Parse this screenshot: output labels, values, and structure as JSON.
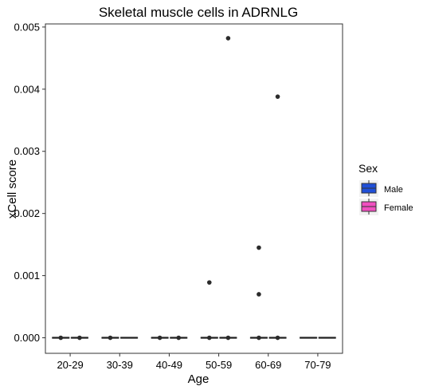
{
  "chart_data": {
    "type": "boxplot",
    "title": "Skeletal muscle cells in ADRNLG",
    "xlabel": "Age",
    "ylabel": "xCell score",
    "categories": [
      "20-29",
      "30-39",
      "40-49",
      "50-59",
      "60-69",
      "70-79"
    ],
    "ylim": [
      -0.00025,
      0.00505
    ],
    "yticks": [
      "0.000",
      "0.001",
      "0.002",
      "0.003",
      "0.004",
      "0.005"
    ],
    "grid": false,
    "legend": {
      "title": "Sex",
      "placement": "right",
      "entries": [
        {
          "name": "Male",
          "color": "#1f4fd8"
        },
        {
          "name": "Female",
          "color": "#f04fc0"
        }
      ]
    },
    "series": [
      {
        "name": "Male",
        "color": "#1f4fd8",
        "boxes": [
          {
            "q1": 0,
            "median": 0,
            "q3": 0,
            "whisker_low": 0,
            "whisker_high": 0,
            "outliers": [
              0
            ]
          },
          {
            "q1": 0,
            "median": 0,
            "q3": 0,
            "whisker_low": 0,
            "whisker_high": 0,
            "outliers": [
              0
            ]
          },
          {
            "q1": 0,
            "median": 0,
            "q3": 0,
            "whisker_low": 0,
            "whisker_high": 0,
            "outliers": [
              0
            ]
          },
          {
            "q1": 0,
            "median": 0,
            "q3": 0,
            "whisker_low": 0,
            "whisker_high": 0,
            "outliers": [
              0.00089,
              0
            ]
          },
          {
            "q1": 0,
            "median": 0,
            "q3": 0,
            "whisker_low": 0,
            "whisker_high": 0,
            "outliers": [
              0.00145,
              0.0007,
              0
            ]
          },
          {
            "q1": 0,
            "median": 0,
            "q3": 0,
            "whisker_low": 0,
            "whisker_high": 0,
            "outliers": []
          }
        ]
      },
      {
        "name": "Female",
        "color": "#f04fc0",
        "boxes": [
          {
            "q1": 0,
            "median": 0,
            "q3": 0,
            "whisker_low": 0,
            "whisker_high": 0,
            "outliers": [
              0
            ]
          },
          {
            "q1": 0,
            "median": 0,
            "q3": 0,
            "whisker_low": 0,
            "whisker_high": 0,
            "outliers": []
          },
          {
            "q1": 0,
            "median": 0,
            "q3": 0,
            "whisker_low": 0,
            "whisker_high": 0,
            "outliers": [
              0
            ]
          },
          {
            "q1": 0,
            "median": 0,
            "q3": 0,
            "whisker_low": 0,
            "whisker_high": 0,
            "outliers": [
              0.00482,
              0
            ]
          },
          {
            "q1": 0,
            "median": 0,
            "q3": 0,
            "whisker_low": 0,
            "whisker_high": 0,
            "outliers": [
              0.00388,
              0
            ]
          },
          {
            "q1": 0,
            "median": 0,
            "q3": 0,
            "whisker_low": 0,
            "whisker_high": 0,
            "outliers": []
          }
        ]
      }
    ]
  }
}
